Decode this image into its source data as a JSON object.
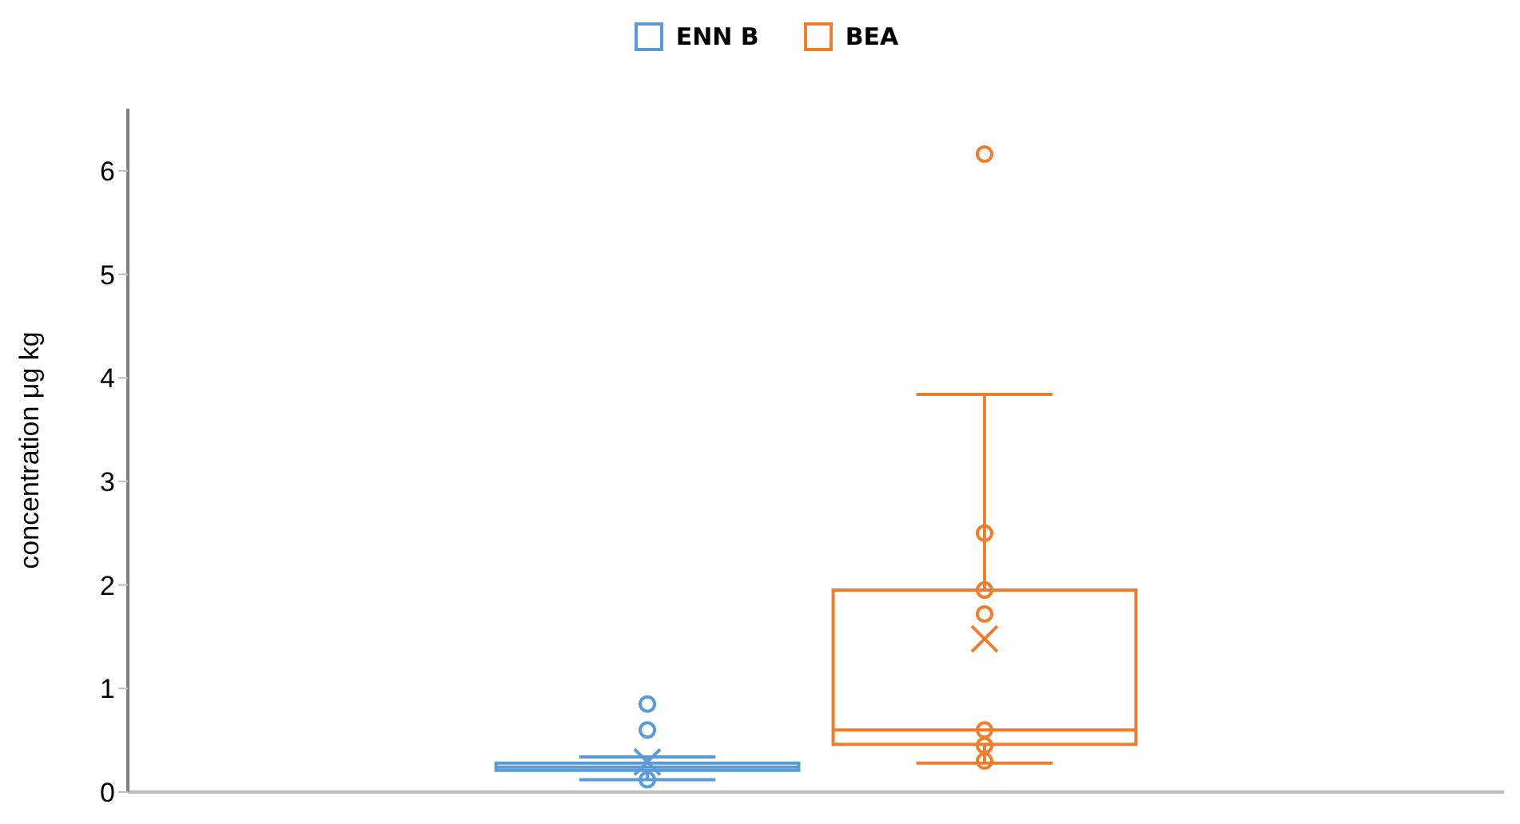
{
  "chart_data": {
    "type": "box",
    "ylabel": "concentration μg kg",
    "categories": [
      null
    ],
    "ylim": [
      0,
      6.6
    ],
    "yticks": [
      0,
      1,
      2,
      3,
      4,
      5,
      6
    ],
    "legend": "top",
    "grid": false,
    "series": [
      {
        "name": "ENN B",
        "color": "#5b9bd5",
        "boxes": [
          {
            "low": 0.12,
            "q1": 0.21,
            "median": 0.24,
            "q3": 0.28,
            "high": 0.34,
            "mean": 0.29,
            "outliers": [
              0.85,
              0.6,
              0.12
            ]
          }
        ]
      },
      {
        "name": "BEA",
        "color": "#ed7d31",
        "boxes": [
          {
            "low": 0.28,
            "q1": 0.46,
            "median": 0.6,
            "q3": 1.95,
            "high": 3.84,
            "mean": 1.48,
            "outliers": [
              6.16,
              2.5,
              1.95,
              1.72,
              0.6,
              0.45,
              0.3
            ]
          }
        ]
      }
    ]
  }
}
